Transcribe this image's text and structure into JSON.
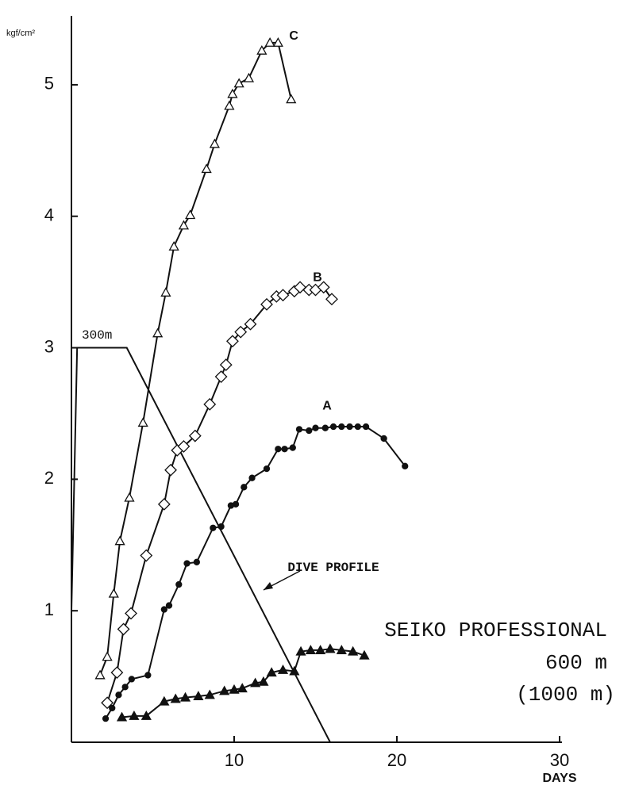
{
  "chart_data": {
    "type": "line",
    "y_label": "kgf/cm²",
    "x_label": "DAYS",
    "xlim": [
      0,
      30
    ],
    "ylim": [
      0,
      5.5
    ],
    "xticks": [
      10,
      20,
      30
    ],
    "yticks": [
      1,
      2,
      3,
      4,
      5
    ],
    "grid": false,
    "color": "#111111",
    "series": [
      {
        "name": "C",
        "marker": "triangle-open",
        "x": [
          1.76,
          2.2,
          2.6,
          2.98,
          3.56,
          4.4,
          5.3,
          5.8,
          6.3,
          6.9,
          7.3,
          8.3,
          8.8,
          9.7,
          9.9,
          10.3,
          10.9,
          11.7,
          12.2,
          12.7,
          13.5
        ],
        "values": [
          0.51,
          0.65,
          1.13,
          1.53,
          1.86,
          2.43,
          3.11,
          3.42,
          3.77,
          3.93,
          4.01,
          4.36,
          4.55,
          4.84,
          4.93,
          5.01,
          5.05,
          5.26,
          5.32,
          5.32,
          4.89
        ]
      },
      {
        "name": "B",
        "marker": "diamond-open",
        "x": [
          2.2,
          2.8,
          3.2,
          3.66,
          4.6,
          5.7,
          6.1,
          6.5,
          6.9,
          7.6,
          8.5,
          9.2,
          9.5,
          9.9,
          10.4,
          11.0,
          12.0,
          12.6,
          13.0,
          13.7,
          14.05,
          14.6,
          15.0,
          15.5,
          16.0
        ],
        "values": [
          0.3,
          0.53,
          0.86,
          0.98,
          1.42,
          1.81,
          2.07,
          2.22,
          2.25,
          2.33,
          2.57,
          2.78,
          2.87,
          3.05,
          3.12,
          3.18,
          3.33,
          3.39,
          3.4,
          3.43,
          3.46,
          3.44,
          3.44,
          3.46,
          3.37
        ]
      },
      {
        "name": "A",
        "marker": "circle-filled",
        "x": [
          2.1,
          2.5,
          2.9,
          3.3,
          3.7,
          4.7,
          5.7,
          6.0,
          6.6,
          7.1,
          7.7,
          8.7,
          9.2,
          9.8,
          10.1,
          10.6,
          11.1,
          12.0,
          12.7,
          13.1,
          13.6,
          14.0,
          14.6,
          15.0,
          15.6,
          16.1,
          16.6,
          17.1,
          17.6,
          18.1,
          19.2,
          20.5
        ],
        "values": [
          0.18,
          0.26,
          0.36,
          0.42,
          0.48,
          0.51,
          1.01,
          1.04,
          1.2,
          1.36,
          1.37,
          1.63,
          1.64,
          1.8,
          1.81,
          1.94,
          2.01,
          2.08,
          2.23,
          2.23,
          2.24,
          2.38,
          2.37,
          2.39,
          2.39,
          2.4,
          2.4,
          2.4,
          2.4,
          2.4,
          2.31,
          2.1
        ]
      },
      {
        "marker": "triangle-filled",
        "x": [
          3.1,
          3.85,
          4.6,
          5.7,
          6.4,
          7.0,
          7.8,
          8.5,
          9.4,
          10.0,
          10.5,
          11.3,
          11.8,
          12.3,
          13.0,
          13.7,
          14.1,
          14.7,
          15.3,
          15.9,
          16.6,
          17.3,
          18.0
        ],
        "values": [
          0.19,
          0.2,
          0.2,
          0.31,
          0.33,
          0.34,
          0.35,
          0.36,
          0.39,
          0.4,
          0.41,
          0.45,
          0.46,
          0.53,
          0.55,
          0.54,
          0.69,
          0.7,
          0.7,
          0.71,
          0.7,
          0.69,
          0.66
        ]
      }
    ],
    "dive_profile": {
      "label": "DIVE PROFILE",
      "depth_label": "300m",
      "x": [
        0,
        0.35,
        3.4,
        15.9
      ],
      "values": [
        1,
        3,
        3,
        0
      ]
    },
    "annotations": [
      "SEIKO PROFESSIONAL",
      "600 m",
      "(1000 m)"
    ]
  }
}
